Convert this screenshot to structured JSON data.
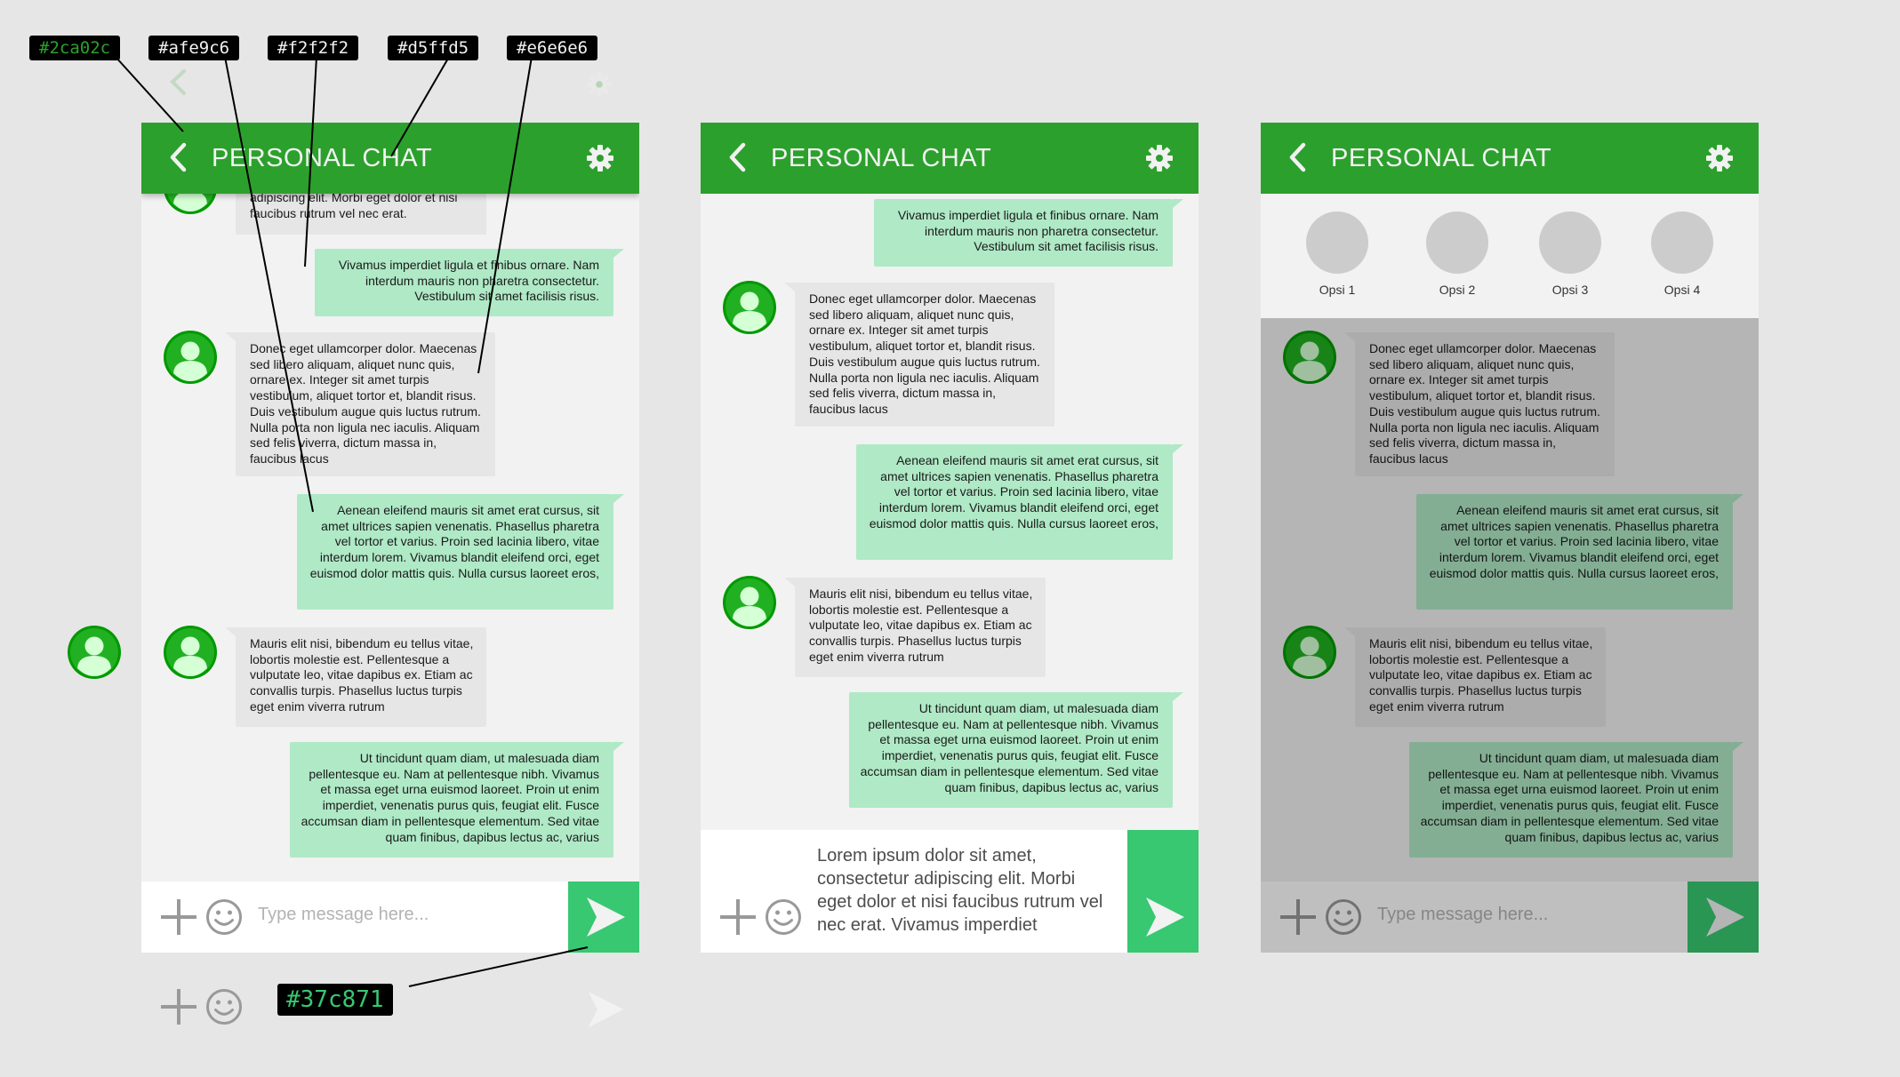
{
  "header": {
    "title": "PERSONAL CHAT"
  },
  "input": {
    "placeholder": "Type message here..."
  },
  "messages": {
    "m0": "adipiscing elit. Morbi eget dolor et nisi faucibus rutrum vel nec erat.",
    "m1": "Vivamus imperdiet ligula et finibus ornare. Nam interdum mauris non pharetra consectetur. Vestibulum sit amet facilisis risus.",
    "m2": "Donec eget ullamcorper dolor. Maecenas sed libero aliquam, aliquet nunc quis, ornare ex. Integer sit amet turpis vestibulum, aliquet tortor et, blandit risus. Duis vestibulum augue quis luctus rutrum. Nulla porta non ligula nec iaculis. Aliquam sed felis viverra, dictum massa in, faucibus lacus",
    "m3": "Aenean eleifend mauris sit amet erat cursus, sit amet ultrices sapien venenatis. Phasellus pharetra vel tortor et varius. Proin sed lacinia libero, vitae interdum lorem. Vivamus blandit eleifend orci, eget euismod dolor mattis quis. Nulla cursus laoreet eros,",
    "m4": "Mauris elit nisi, bibendum eu tellus vitae, lobortis molestie est. Pellentesque a vulputate leo, vitae dapibus ex. Etiam ac convallis turpis. Phasellus luctus turpis eget enim viverra rutrum",
    "m5": "Ut tincidunt quam diam, ut malesuada diam pellentesque eu. Nam at pellentesque nibh. Vivamus et massa eget urna euismod laoreet. Proin ut enim imperdiet, venenatis purus quis, feugiat elit. Fusce accumsan diam in pellentesque elementum. Sed vitae quam finibus, dapibus lectus ac, varius"
  },
  "typed_text": "Lorem ipsum dolor sit amet, consectetur adipiscing elit. Morbi eget dolor et nisi faucibus rutrum vel nec erat. Vivamus imperdiet",
  "options": [
    "Opsi 1",
    "Opsi 2",
    "Opsi 3",
    "Opsi 4"
  ],
  "callouts": {
    "c1": "#2ca02c",
    "c2": "#afe9c6",
    "c3": "#f2f2f2",
    "c4": "#d5ffd5",
    "c5": "#e6e6e6",
    "c6": "#37c871"
  },
  "colors": {
    "header_green": "#2ca02c",
    "outgoing_bubble": "#afe9c6",
    "chat_background": "#f2f2f2",
    "header_text": "#d5ffd5",
    "incoming_bubble": "#e6e6e6",
    "send_button": "#37c871"
  },
  "icons": [
    "back-chevron-icon",
    "gear-icon",
    "plus-icon",
    "emoji-icon",
    "send-icon",
    "user-avatar-icon"
  ]
}
